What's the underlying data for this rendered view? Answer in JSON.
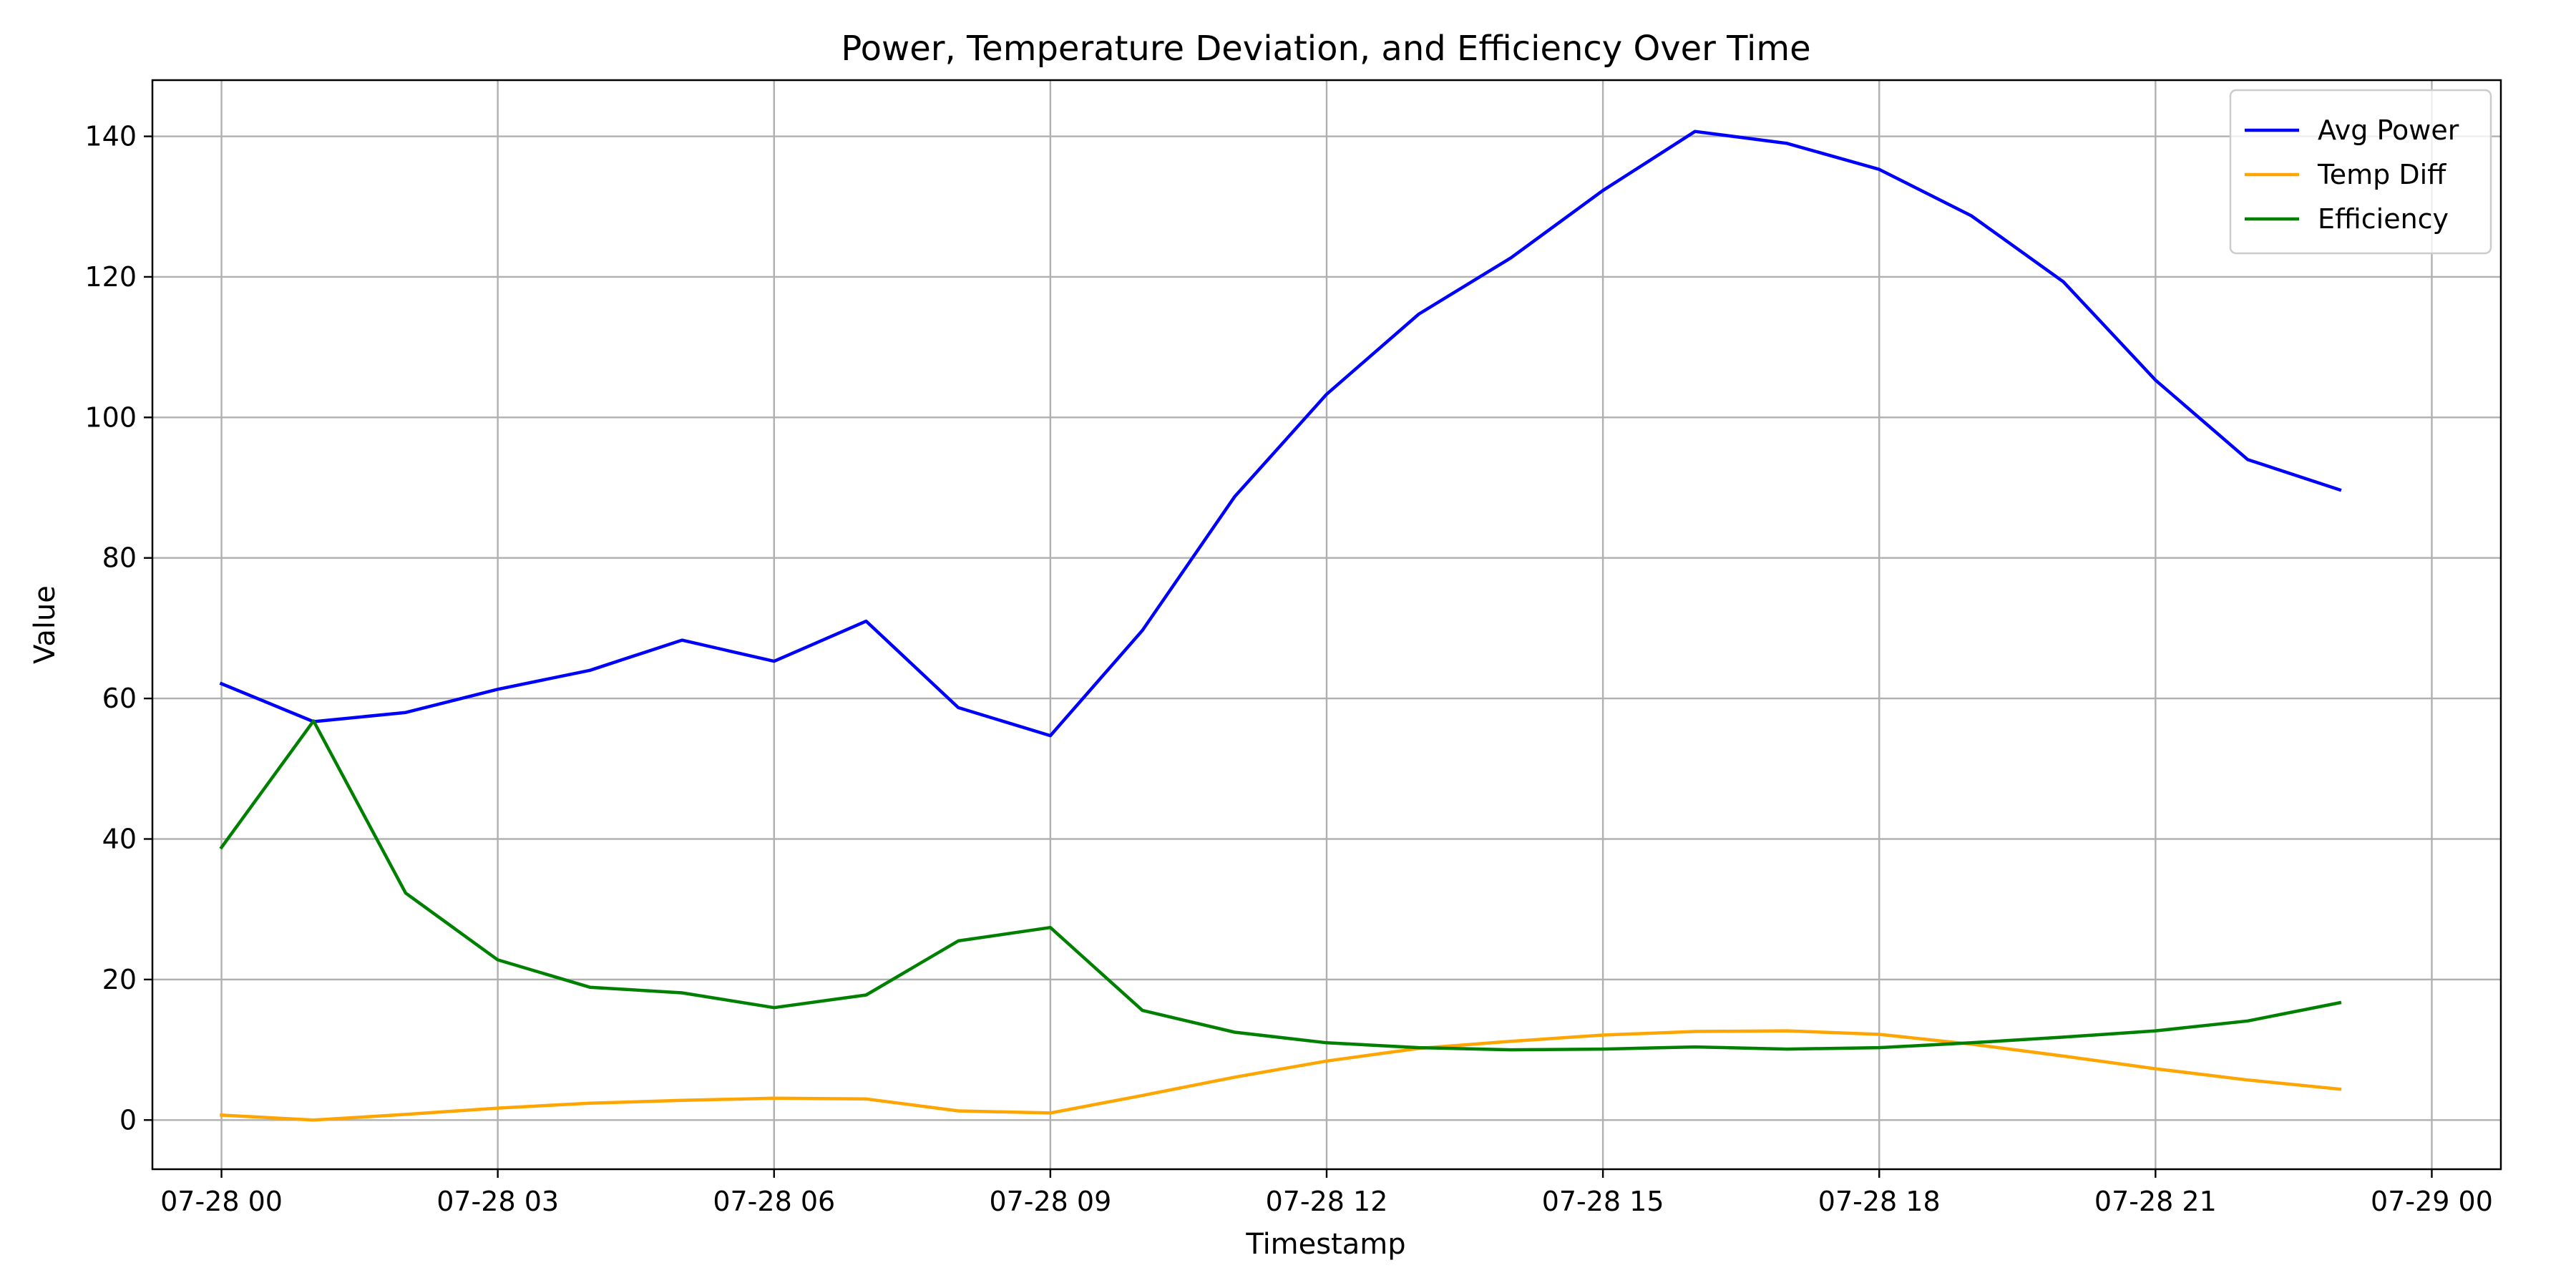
{
  "chart_data": {
    "type": "line",
    "title": "Power, Temperature Deviation, and Efficiency Over Time",
    "xlabel": "Timestamp",
    "ylabel": "Value",
    "x": [
      "07-28 00:00",
      "07-28 01:00",
      "07-28 02:00",
      "07-28 03:00",
      "07-28 04:00",
      "07-28 05:00",
      "07-28 06:00",
      "07-28 07:00",
      "07-28 08:00",
      "07-28 09:00",
      "07-28 10:00",
      "07-28 11:00",
      "07-28 12:00",
      "07-28 13:00",
      "07-28 14:00",
      "07-28 15:00",
      "07-28 16:00",
      "07-28 17:00",
      "07-28 18:00",
      "07-28 19:00",
      "07-28 20:00",
      "07-28 21:00",
      "07-28 22:00",
      "07-28 23:00"
    ],
    "xlim": [
      "07-27 23:15",
      "07-29 00:45"
    ],
    "ylim": [
      -7,
      148
    ],
    "x_ticks": [
      "07-28 00",
      "07-28 03",
      "07-28 06",
      "07-28 09",
      "07-28 12",
      "07-28 15",
      "07-28 18",
      "07-28 21",
      "07-29 00"
    ],
    "y_ticks": [
      0,
      20,
      40,
      60,
      80,
      100,
      120,
      140
    ],
    "grid": true,
    "legend_position": "top-right",
    "series": [
      {
        "name": "Avg Power",
        "color": "#0000ff",
        "values": [
          62.1,
          56.7,
          58.0,
          61.3,
          64.0,
          68.3,
          65.3,
          71.0,
          58.7,
          54.7,
          69.7,
          88.7,
          103.3,
          114.7,
          122.7,
          132.3,
          140.7,
          139.0,
          135.3,
          128.7,
          119.3,
          105.3,
          94.0,
          89.7
        ]
      },
      {
        "name": "Temp Diff",
        "color": "#ffa500",
        "values": [
          0.7,
          0.0,
          0.8,
          1.7,
          2.4,
          2.8,
          3.1,
          3.0,
          1.3,
          1.0,
          3.5,
          6.1,
          8.4,
          10.2,
          11.2,
          12.1,
          12.6,
          12.7,
          12.2,
          10.8,
          9.1,
          7.3,
          5.7,
          4.4
        ]
      },
      {
        "name": "Efficiency",
        "color": "#008000",
        "values": [
          38.8,
          56.8,
          32.3,
          22.8,
          18.9,
          18.1,
          16.0,
          17.8,
          25.5,
          27.4,
          15.6,
          12.5,
          11.0,
          10.3,
          10.0,
          10.1,
          10.4,
          10.1,
          10.3,
          11.0,
          11.8,
          12.7,
          14.1,
          16.7
        ]
      }
    ]
  }
}
